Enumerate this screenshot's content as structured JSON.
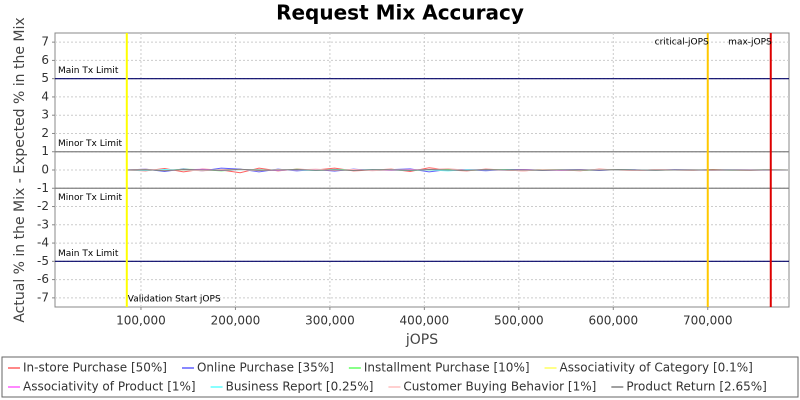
{
  "chart_data": {
    "type": "line",
    "title": "Request Mix Accuracy",
    "x_label": "jOPS",
    "y_label": "Actual % in the Mix - Expected % in the Mix",
    "xlim": [
      9000,
      786000
    ],
    "ylim": [
      -7.5,
      7.5
    ],
    "xticks": [
      {
        "value": 100000,
        "label": "100,000"
      },
      {
        "value": 200000,
        "label": "200,000"
      },
      {
        "value": 300000,
        "label": "300,000"
      },
      {
        "value": 400000,
        "label": "400,000"
      },
      {
        "value": 500000,
        "label": "500,000"
      },
      {
        "value": 600000,
        "label": "600,000"
      },
      {
        "value": 700000,
        "label": "700,000"
      }
    ],
    "yticks": [
      -7,
      -6,
      -5,
      -4,
      -3,
      -2,
      -1,
      0,
      1,
      2,
      3,
      4,
      5,
      6,
      7
    ],
    "grid": true,
    "reference_lines": [
      {
        "label": "Main Tx Limit",
        "value": 5,
        "color": "#000066"
      },
      {
        "label": "Minor Tx Limit",
        "value": 1,
        "color": "#808080"
      },
      {
        "label": "Minor Tx Limit",
        "value": -1,
        "color": "#808080"
      },
      {
        "label": "Main Tx Limit",
        "value": -5,
        "color": "#000066"
      }
    ],
    "markers": [
      {
        "label": "Validation Start jOPS",
        "value": 85000,
        "color": "#ffff00"
      },
      {
        "label": "critical-jOPS",
        "value": 700000,
        "color": "#ffc800"
      },
      {
        "label": "max-jOPS",
        "value": 766700,
        "color": "#dd0000"
      }
    ],
    "x": [
      85000,
      105000,
      125000,
      145000,
      165000,
      185000,
      205000,
      225000,
      245000,
      265000,
      285000,
      305000,
      325000,
      345000,
      365000,
      385000,
      405000,
      425000,
      445000,
      465000,
      485000,
      505000,
      525000,
      545000,
      565000,
      585000,
      605000,
      625000,
      645000,
      665000,
      685000,
      705000,
      725000,
      745000,
      765000,
      785000
    ],
    "series": [
      {
        "name": "In-store Purchase [50%]",
        "color": "#ff6060",
        "values": [
          0,
          -0.05,
          0.08,
          -0.1,
          0.05,
          0,
          -0.15,
          0.1,
          -0.05,
          0.05,
          0,
          0.1,
          -0.05,
          0,
          0.05,
          -0.08,
          0.12,
          0,
          -0.05,
          0.05,
          0,
          -0.05,
          0.03,
          0,
          -0.04,
          0.05,
          0,
          -0.03,
          0.02,
          0,
          -0.02,
          0.03,
          0,
          -0.02,
          0.01,
          0
        ]
      },
      {
        "name": "Online Purchase [35%]",
        "color": "#6060ff",
        "values": [
          0,
          0.05,
          -0.08,
          0.06,
          -0.05,
          0.1,
          0.05,
          -0.1,
          0.05,
          -0.05,
          0.03,
          -0.06,
          0.05,
          -0.03,
          0.02,
          0.06,
          -0.1,
          0.03,
          0.02,
          -0.04,
          0.02,
          0.03,
          -0.02,
          0.01,
          0.03,
          -0.03,
          0.02,
          0.01,
          -0.02,
          0.02,
          0,
          -0.01,
          0.02,
          0,
          -0.01,
          0
        ]
      },
      {
        "name": "Installment Purchase [10%]",
        "color": "#60ff60",
        "values": [
          0,
          0.02,
          -0.03,
          0.04,
          0.02,
          -0.05,
          0.03,
          0.02,
          -0.03,
          0.04,
          -0.02,
          0.02,
          0.03,
          -0.02,
          0.01,
          -0.03,
          0.02,
          0.04,
          -0.02,
          0.01,
          0.02,
          -0.01,
          0.02,
          0.01,
          -0.02,
          0.01,
          0.02,
          0,
          -0.01,
          0.01,
          0,
          0.01,
          -0.01,
          0,
          0.01,
          0
        ]
      },
      {
        "name": "Associativity of Category [0.1%]",
        "color": "#ffff60",
        "values": [
          0,
          0.01,
          0,
          -0.01,
          0.01,
          0,
          0.01,
          -0.01,
          0,
          0.01,
          0,
          -0.01,
          0,
          0.01,
          0,
          0,
          -0.01,
          0,
          0.01,
          0,
          0,
          -0.01,
          0,
          0,
          0.01,
          0,
          0,
          0,
          -0.01,
          0,
          0,
          0,
          0.01,
          0,
          0,
          0
        ]
      },
      {
        "name": "Associativity of Product [1%]",
        "color": "#ff60ff",
        "values": [
          0,
          0.03,
          -0.02,
          0.01,
          0.04,
          -0.03,
          0.02,
          0,
          -0.03,
          0.02,
          0.01,
          -0.02,
          0.03,
          0,
          -0.02,
          0.02,
          0.01,
          -0.03,
          0.02,
          0,
          -0.01,
          0.02,
          0,
          -0.02,
          0.01,
          0,
          0.01,
          -0.01,
          0,
          0.01,
          0,
          -0.01,
          0,
          0.01,
          0,
          0
        ]
      },
      {
        "name": "Business Report [0.25%]",
        "color": "#60ffff",
        "values": [
          0,
          -0.02,
          0.03,
          0,
          -0.03,
          0.02,
          0.01,
          -0.02,
          0.02,
          0,
          -0.03,
          0.02,
          -0.01,
          0.03,
          0,
          -0.02,
          0.01,
          -0.05,
          0.02,
          0,
          0.01,
          -0.02,
          0.01,
          0,
          -0.01,
          0.02,
          -0.01,
          0,
          0.01,
          0,
          -0.01,
          0,
          0.01,
          -0.01,
          0,
          0
        ]
      },
      {
        "name": "Customer Buying Behavior [1%]",
        "color": "#ffc0c0",
        "values": [
          0,
          0.04,
          -0.03,
          0.02,
          -0.05,
          0.03,
          0.02,
          -0.04,
          0.03,
          0,
          0.05,
          -0.02,
          0.03,
          -0.04,
          0.02,
          0,
          0.03,
          0.08,
          -0.03,
          0.02,
          0,
          -0.05,
          0.02,
          0.01,
          -0.02,
          0.03,
          0,
          -0.03,
          0.02,
          0,
          0.01,
          -0.02,
          0.01,
          0,
          -0.01,
          0
        ]
      },
      {
        "name": "Product Return [2.65%]",
        "color": "#808080",
        "values": [
          0,
          0.02,
          -0.04,
          0.03,
          0.01,
          -0.02,
          0.04,
          -0.02,
          0,
          0.03,
          -0.02,
          0.01,
          -0.03,
          0.02,
          0.01,
          -0.02,
          0.03,
          0,
          -0.02,
          0.02,
          0,
          0.01,
          -0.02,
          0.01,
          0,
          -0.01,
          0.02,
          0,
          -0.01,
          0,
          0.01,
          0,
          -0.01,
          0,
          0.01,
          0
        ]
      }
    ]
  }
}
